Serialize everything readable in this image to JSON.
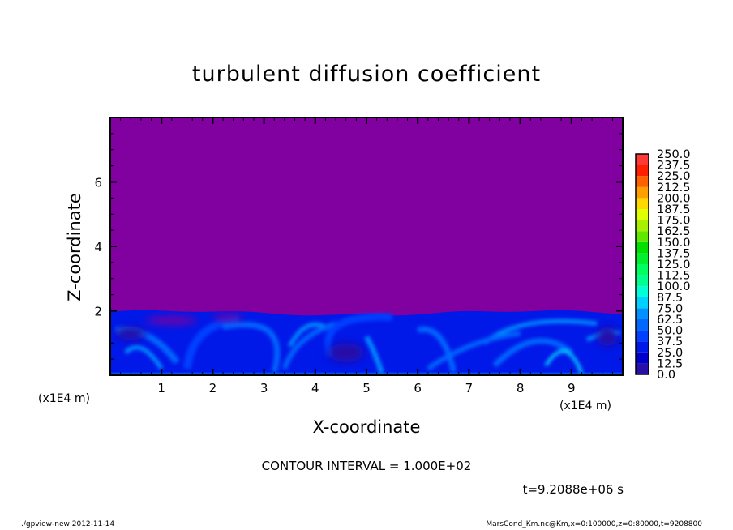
{
  "chart_data": {
    "type": "heatmap",
    "title": "turbulent diffusion coefficient",
    "xlabel": "X-coordinate",
    "ylabel": "Z-coordinate",
    "x_unit": "(x1E4 m)",
    "xlim": [
      0,
      10
    ],
    "ylim": [
      0,
      8
    ],
    "x_ticks": [
      "1",
      "2",
      "3",
      "4",
      "5",
      "6",
      "7",
      "8",
      "9"
    ],
    "y_ticks": [
      "2",
      "4",
      "6"
    ],
    "contour_interval": "CONTOUR INTERVAL = 1.000E+02",
    "time_label": "t=9.2088e+06 s",
    "colorbar": {
      "levels": [
        "0.0",
        "12.5",
        "25.0",
        "37.5",
        "50.0",
        "62.5",
        "75.0",
        "87.5",
        "100.0",
        "112.5",
        "125.0",
        "137.5",
        "150.0",
        "162.5",
        "175.0",
        "187.5",
        "200.0",
        "212.5",
        "225.0",
        "237.5",
        "250.0"
      ],
      "colors": [
        "#7c00a0",
        "#2810a8",
        "#0000c8",
        "#0018e8",
        "#0040ff",
        "#0068ff",
        "#0090ff",
        "#00d0ff",
        "#00ffd8",
        "#00ff90",
        "#00ff60",
        "#00f030",
        "#00e000",
        "#60e800",
        "#a8f000",
        "#e0ff00",
        "#ffd800",
        "#ffa000",
        "#ff6000",
        "#ff2000",
        "#ff3838",
        "#ff7070"
      ]
    },
    "background_color": "#8000a0"
  },
  "footer": {
    "left": "./gpview-new  2012-11-14",
    "right": "MarsCond_Km.nc@Km,x=0:100000,z=0:80000,t=9208800"
  }
}
